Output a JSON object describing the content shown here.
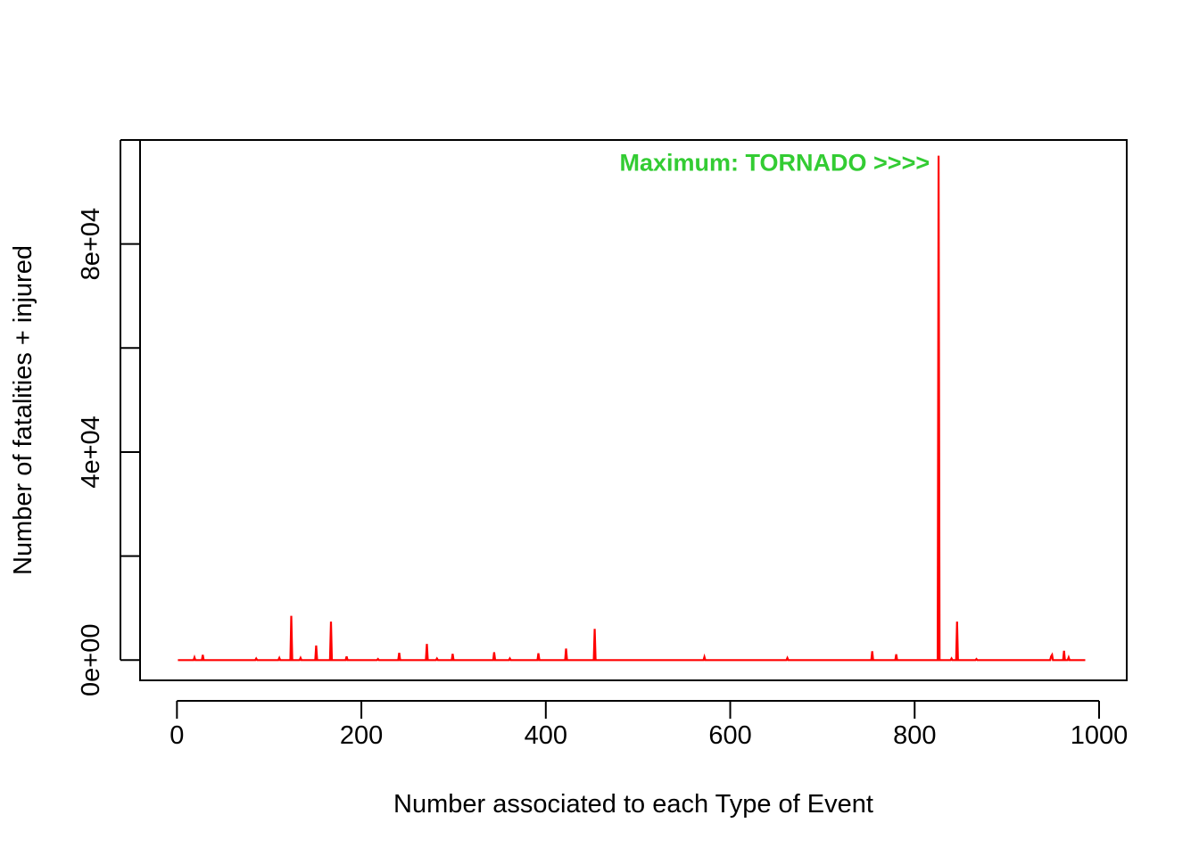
{
  "chart_data": {
    "type": "line",
    "title": "",
    "xlabel": "Number associated to each Type of Event",
    "ylabel": "Number of fatalities + injured",
    "xlim": [
      -40,
      1030
    ],
    "ylim": [
      -3900,
      100000
    ],
    "x_ticks": [
      0,
      200,
      400,
      600,
      800,
      1000
    ],
    "x_tick_labels": [
      "0",
      "200",
      "400",
      "600",
      "800",
      "1000"
    ],
    "y_ticks": [
      0,
      20000,
      40000,
      60000,
      80000,
      100000
    ],
    "y_tick_labels": [
      "0e+00",
      "",
      "4e+04",
      "",
      "8e+04",
      ""
    ],
    "grid": false,
    "series": [
      {
        "color": "#ff0000",
        "x_range": [
          1,
          985
        ],
        "points": [
          [
            1,
            0
          ],
          [
            18,
            0
          ],
          [
            19,
            500
          ],
          [
            20,
            0
          ],
          [
            27,
            0
          ],
          [
            28,
            1000
          ],
          [
            29,
            0
          ],
          [
            85,
            0
          ],
          [
            86,
            300
          ],
          [
            87,
            0
          ],
          [
            110,
            0
          ],
          [
            111,
            400
          ],
          [
            112,
            0
          ],
          [
            123,
            0
          ],
          [
            124,
            8500
          ],
          [
            125,
            0
          ],
          [
            133,
            0
          ],
          [
            134,
            400
          ],
          [
            135,
            0
          ],
          [
            150,
            0
          ],
          [
            151,
            2800
          ],
          [
            152,
            0
          ],
          [
            166,
            0
          ],
          [
            167,
            7400
          ],
          [
            168,
            0
          ],
          [
            183,
            0
          ],
          [
            184,
            700
          ],
          [
            185,
            0
          ],
          [
            217,
            0
          ],
          [
            218,
            200
          ],
          [
            219,
            0
          ],
          [
            240,
            0
          ],
          [
            241,
            1400
          ],
          [
            242,
            0
          ],
          [
            270,
            0
          ],
          [
            271,
            3100
          ],
          [
            272,
            0
          ],
          [
            281,
            0
          ],
          [
            282,
            300
          ],
          [
            283,
            0
          ],
          [
            298,
            0
          ],
          [
            299,
            1200
          ],
          [
            300,
            0
          ],
          [
            343,
            0
          ],
          [
            344,
            1500
          ],
          [
            345,
            0
          ],
          [
            360,
            0
          ],
          [
            361,
            300
          ],
          [
            362,
            0
          ],
          [
            391,
            0
          ],
          [
            392,
            1300
          ],
          [
            393,
            0
          ],
          [
            421,
            0
          ],
          [
            422,
            2200
          ],
          [
            423,
            0
          ],
          [
            452,
            0
          ],
          [
            453,
            6000
          ],
          [
            454,
            0
          ],
          [
            571,
            0
          ],
          [
            572,
            600
          ],
          [
            573,
            0
          ],
          [
            661,
            0
          ],
          [
            662,
            400
          ],
          [
            663,
            0
          ],
          [
            753,
            0
          ],
          [
            754,
            1700
          ],
          [
            755,
            0
          ],
          [
            779,
            0
          ],
          [
            780,
            1100
          ],
          [
            781,
            0
          ],
          [
            825,
            0
          ],
          [
            826,
            96979
          ],
          [
            827,
            0
          ],
          [
            839,
            0
          ],
          [
            840,
            300
          ],
          [
            841,
            0
          ],
          [
            845,
            0
          ],
          [
            846,
            7400
          ],
          [
            847,
            0
          ],
          [
            866,
            0
          ],
          [
            867,
            200
          ],
          [
            868,
            0
          ],
          [
            947,
            0
          ],
          [
            948,
            700
          ],
          [
            949,
            1000
          ],
          [
            950,
            0
          ],
          [
            961,
            0
          ],
          [
            962,
            1800
          ],
          [
            963,
            0
          ],
          [
            966,
            0
          ],
          [
            967,
            500
          ],
          [
            968,
            0
          ],
          [
            985,
            0
          ]
        ]
      }
    ],
    "annotations": [
      {
        "text": "Maximum: TORNADO >>>>",
        "color": "#33cc33",
        "x": 826,
        "y": 96979
      }
    ]
  }
}
